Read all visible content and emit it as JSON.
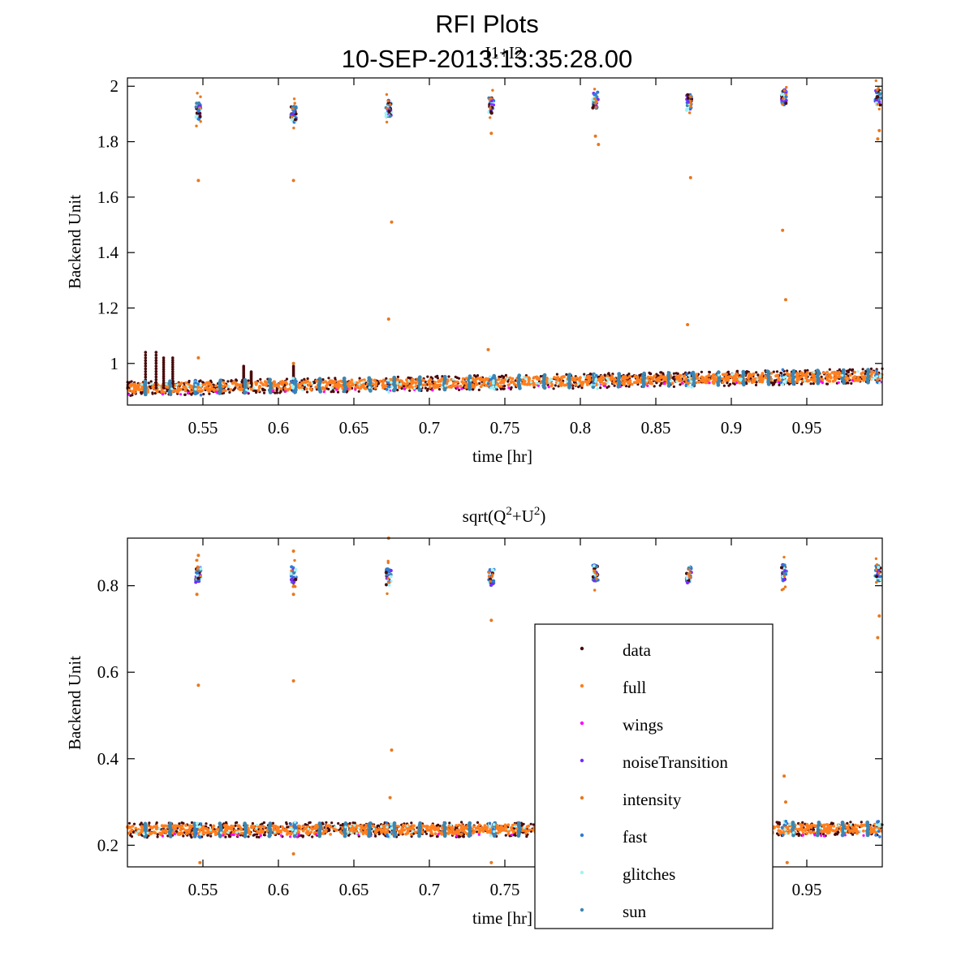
{
  "figure": {
    "title_line1": "RFI Plots",
    "title_line2": "10-SEP-2013:13:35:28.00"
  },
  "colors": {
    "data": "#4a0a0a",
    "full": "#ff7f1f",
    "wings": "#ff00ff",
    "noiseTransition": "#7a28ff",
    "intensity": "#e8781e",
    "fast": "#2c7bd6",
    "glitches": "#9ef4f8",
    "sun": "#3d86b0"
  },
  "chart_data": [
    {
      "type": "scatter",
      "title": "I1+I2",
      "xlabel": "time [hr]",
      "ylabel": "Backend Unit",
      "xlim": [
        0.5,
        1.0
      ],
      "ylim": [
        0.85,
        2.03
      ],
      "xticks": [
        "0.55",
        "0.6",
        "0.65",
        "0.7",
        "0.75",
        "0.8",
        "0.85",
        "0.9",
        "0.95"
      ],
      "xtick_values": [
        0.55,
        0.6,
        0.65,
        0.7,
        0.75,
        0.8,
        0.85,
        0.9,
        0.95
      ],
      "yticks": [
        "1",
        "1.2",
        "1.4",
        "1.6",
        "1.8",
        "2"
      ],
      "ytick_values": [
        1.0,
        1.2,
        1.4,
        1.6,
        1.8,
        2.0
      ],
      "grid": false,
      "baseline": {
        "x": [
          0.5,
          1.0
        ],
        "y": [
          0.91,
          0.955
        ]
      },
      "clusters": [
        {
          "x": 0.547,
          "y": 1.91
        },
        {
          "x": 0.61,
          "y": 1.9
        },
        {
          "x": 0.673,
          "y": 1.92
        },
        {
          "x": 0.741,
          "y": 1.93
        },
        {
          "x": 0.81,
          "y": 1.95
        },
        {
          "x": 0.872,
          "y": 1.94
        },
        {
          "x": 0.935,
          "y": 1.96
        },
        {
          "x": 0.997,
          "y": 1.96
        }
      ],
      "intensity_outliers": [
        {
          "x": 0.547,
          "y": 1.66
        },
        {
          "x": 0.61,
          "y": 1.66
        },
        {
          "x": 0.675,
          "y": 1.51
        },
        {
          "x": 0.673,
          "y": 1.16
        },
        {
          "x": 0.741,
          "y": 1.83
        },
        {
          "x": 0.81,
          "y": 1.82
        },
        {
          "x": 0.812,
          "y": 1.79
        },
        {
          "x": 0.873,
          "y": 1.67
        },
        {
          "x": 0.871,
          "y": 1.14
        },
        {
          "x": 0.934,
          "y": 1.48
        },
        {
          "x": 0.936,
          "y": 1.23
        },
        {
          "x": 0.998,
          "y": 1.84
        },
        {
          "x": 0.997,
          "y": 1.81
        },
        {
          "x": 0.739,
          "y": 1.05
        },
        {
          "x": 0.547,
          "y": 1.02
        },
        {
          "x": 0.61,
          "y": 1.0
        }
      ],
      "spikes": [
        {
          "x": 0.512,
          "top": 1.04
        },
        {
          "x": 0.519,
          "top": 1.04
        },
        {
          "x": 0.524,
          "top": 1.02
        },
        {
          "x": 0.53,
          "top": 1.02
        },
        {
          "x": 0.577,
          "top": 0.99
        },
        {
          "x": 0.582,
          "top": 0.97
        },
        {
          "x": 0.61,
          "top": 0.99
        }
      ]
    },
    {
      "type": "scatter",
      "title": "sqrt(Q",
      "title_sup1": "2",
      "title_mid": "+U",
      "title_sup2": "2",
      "title_end": ")",
      "xlabel": "time [hr]",
      "ylabel": "Backend Unit",
      "xlim": [
        0.5,
        1.0
      ],
      "ylim": [
        0.15,
        0.91
      ],
      "xticks": [
        "0.55",
        "0.6",
        "0.65",
        "0.7",
        "0.75",
        "0.8",
        "0.85",
        "0.9",
        "0.95"
      ],
      "xtick_values": [
        0.55,
        0.6,
        0.65,
        0.7,
        0.75,
        0.8,
        0.85,
        0.9,
        0.95
      ],
      "yticks": [
        "0.2",
        "0.4",
        "0.6",
        "0.8"
      ],
      "ytick_values": [
        0.2,
        0.4,
        0.6,
        0.8
      ],
      "grid": false,
      "baseline": {
        "x": [
          0.5,
          1.0
        ],
        "y": [
          0.235,
          0.238
        ]
      },
      "clusters": [
        {
          "x": 0.547,
          "y": 0.825
        },
        {
          "x": 0.61,
          "y": 0.825
        },
        {
          "x": 0.673,
          "y": 0.82
        },
        {
          "x": 0.741,
          "y": 0.82
        },
        {
          "x": 0.81,
          "y": 0.83
        },
        {
          "x": 0.872,
          "y": 0.825
        },
        {
          "x": 0.935,
          "y": 0.83
        },
        {
          "x": 0.997,
          "y": 0.83
        }
      ],
      "intensity_outliers": [
        {
          "x": 0.547,
          "y": 0.57
        },
        {
          "x": 0.61,
          "y": 0.58
        },
        {
          "x": 0.675,
          "y": 0.42
        },
        {
          "x": 0.674,
          "y": 0.31
        },
        {
          "x": 0.741,
          "y": 0.72
        },
        {
          "x": 0.546,
          "y": 0.78
        },
        {
          "x": 0.61,
          "y": 0.78
        },
        {
          "x": 0.935,
          "y": 0.36
        },
        {
          "x": 0.936,
          "y": 0.3
        },
        {
          "x": 0.998,
          "y": 0.73
        },
        {
          "x": 0.997,
          "y": 0.68
        },
        {
          "x": 0.547,
          "y": 0.87
        },
        {
          "x": 0.61,
          "y": 0.88
        },
        {
          "x": 0.673,
          "y": 0.91
        },
        {
          "x": 0.741,
          "y": 0.16
        },
        {
          "x": 0.61,
          "y": 0.18
        },
        {
          "x": 0.548,
          "y": 0.16
        },
        {
          "x": 0.937,
          "y": 0.16
        }
      ],
      "spikes": []
    }
  ],
  "legend": {
    "placement": "lower-right",
    "entries": [
      {
        "key": "data",
        "label": "data"
      },
      {
        "key": "full",
        "label": "full"
      },
      {
        "key": "wings",
        "label": "wings"
      },
      {
        "key": "noiseTransition",
        "label": "noiseTransition"
      },
      {
        "key": "intensity",
        "label": "intensity"
      },
      {
        "key": "fast",
        "label": "fast"
      },
      {
        "key": "glitches",
        "label": "glitches"
      },
      {
        "key": "sun",
        "label": "sun"
      }
    ]
  }
}
